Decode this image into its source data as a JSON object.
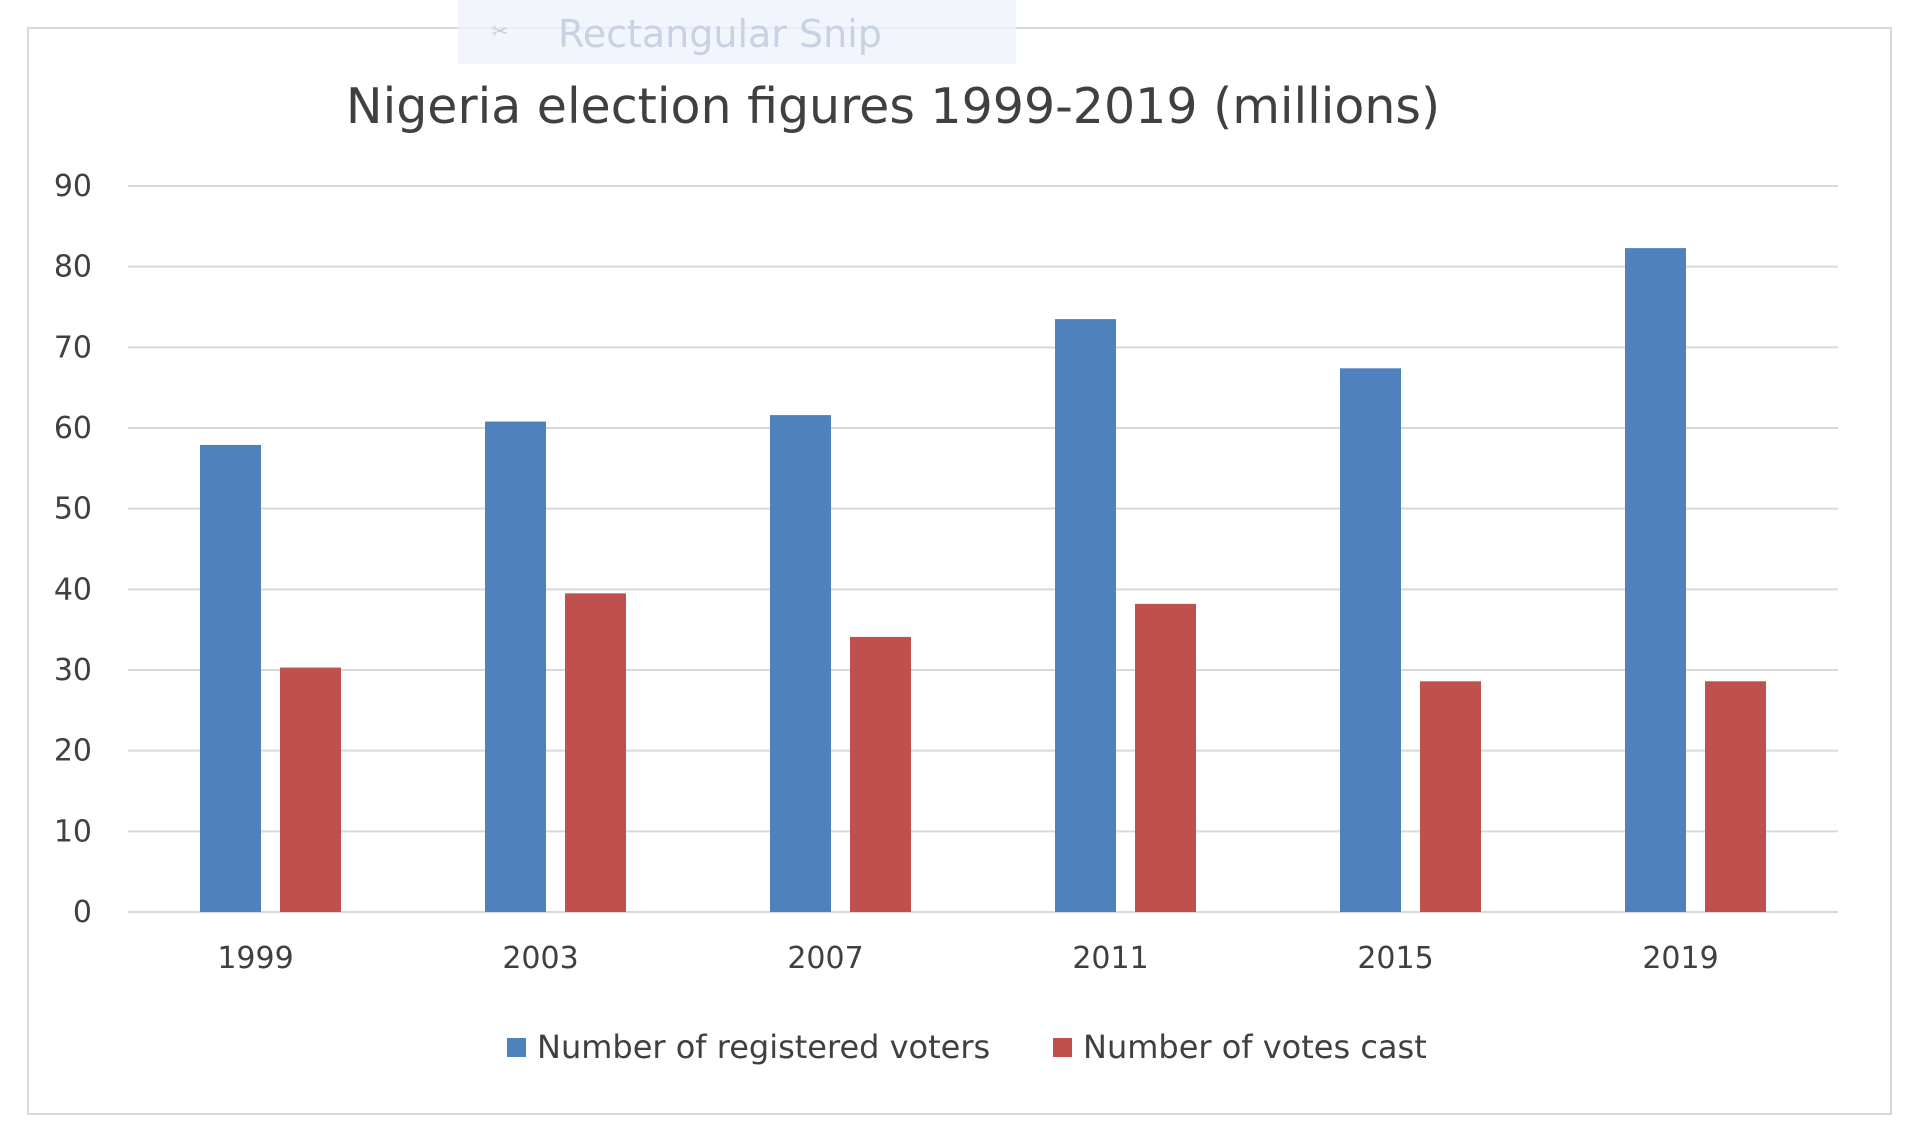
{
  "snip_toolbar": {
    "label": "Rectangular Snip",
    "icon": "snip-mode-icon"
  },
  "colors": {
    "registered": "#4f81bd",
    "cast": "#c0504d",
    "grid": "#d9d9d9",
    "text": "#404040"
  },
  "chart_data": {
    "type": "bar",
    "title": "Nigeria election figures 1999-2019 (millions)",
    "xlabel": "",
    "ylabel": "",
    "categories": [
      "1999",
      "2003",
      "2007",
      "2011",
      "2015",
      "2019"
    ],
    "ylim": [
      0,
      90
    ],
    "yticks": [
      "0",
      "10",
      "20",
      "30",
      "40",
      "50",
      "60",
      "70",
      "80",
      "90"
    ],
    "grid": true,
    "legend_position": "bottom",
    "series": [
      {
        "name": "Number of registered voters",
        "values": [
          57.9,
          60.8,
          61.6,
          73.5,
          67.4,
          82.3
        ]
      },
      {
        "name": "Number of votes cast",
        "values": [
          30.3,
          39.5,
          34.1,
          38.2,
          28.6,
          28.6
        ]
      }
    ]
  }
}
